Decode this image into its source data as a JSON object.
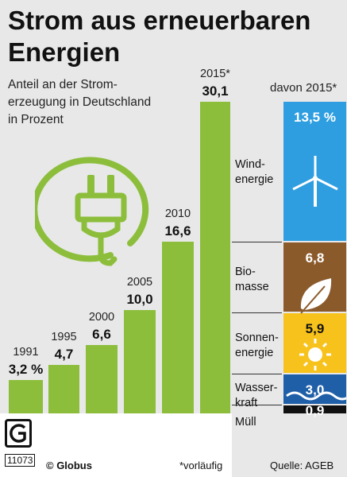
{
  "title_line1": "Strom aus erneuerbaren",
  "title_line2": "Energien",
  "subtitle": "Anteil an der Strom-erzeugung in Deutschland in Prozent",
  "davon_label": "davon 2015*",
  "footer": {
    "logo_code": "11073",
    "copyright": "© Globus",
    "note": "*vorläufig",
    "source": "Quelle: AGEB"
  },
  "colors": {
    "bar": "#8cbe3c",
    "wind": "#2e9ee0",
    "bio": "#8b5a2b",
    "solar": "#f7c21b",
    "water": "#1f5fa8",
    "muell": "#111111"
  },
  "icons": [
    "plug-icon",
    "wind-turbine-icon",
    "leaf-icon",
    "sun-icon",
    "wave-icon"
  ],
  "chart_data": {
    "type": "bar",
    "title": "Strom aus erneuerbaren Energien",
    "subtitle": "Anteil an der Strom-erzeugung in Deutschland in Prozent",
    "unit": "%",
    "categories": [
      "1991",
      "1995",
      "2000",
      "2005",
      "2010",
      "2015*"
    ],
    "values": [
      3.2,
      4.7,
      6.6,
      10.0,
      16.6,
      30.1
    ],
    "value_labels": [
      "3,2 %",
      "4,7",
      "6,6",
      "10,0",
      "16,6",
      "30,1"
    ],
    "breakdown": {
      "label": "davon 2015*",
      "categories": [
        "Windenergie",
        "Biomasse",
        "Sonnenenergie",
        "Wasserkraft",
        "Müll"
      ],
      "category_labels": [
        "Wind-energie",
        "Bio-masse",
        "Sonnen-energie",
        "Wasser-kraft",
        "Müll"
      ],
      "values": [
        13.5,
        6.8,
        5.9,
        3.0,
        0.9
      ],
      "value_labels": [
        "13,5 %",
        "6,8",
        "5,9",
        "3,0",
        "0,9"
      ]
    }
  }
}
